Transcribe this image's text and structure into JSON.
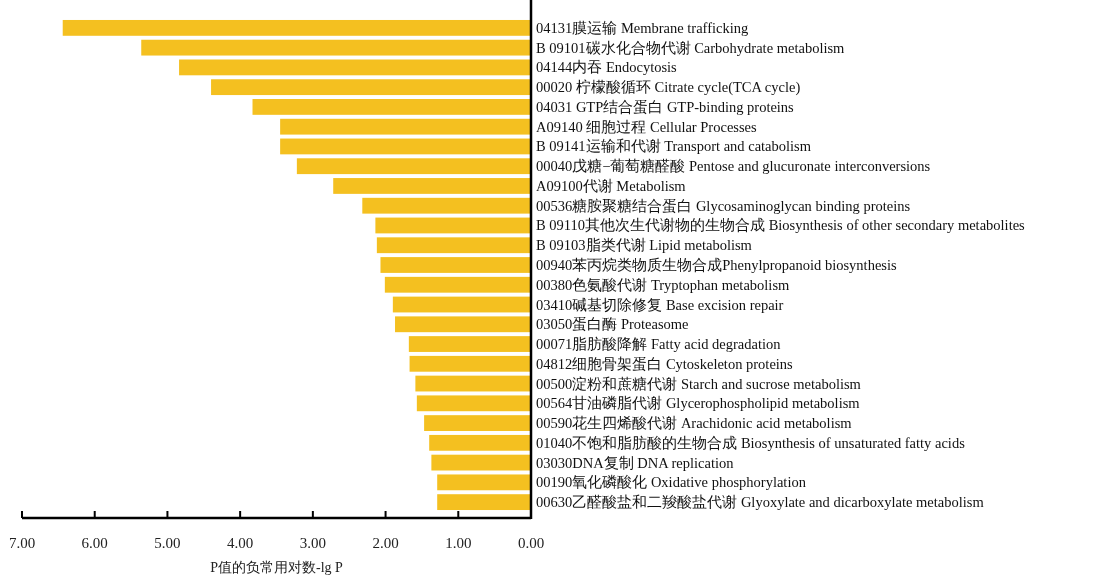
{
  "chart_data": {
    "type": "bar",
    "orientation": "horizontal",
    "xlabel": "P值的负常用对数-lg P",
    "categories": [
      "04131膜运输 Membrane trafficking",
      "B 09101碳水化合物代谢 Carbohydrate metabolism",
      "04144内吞 Endocytosis",
      "00020 柠檬酸循环 Citrate cycle(TCA cycle)",
      "04031 GTP结合蛋白 GTP-binding proteins",
      "A09140 细胞过程 Cellular Processes",
      "B 09141运输和代谢 Transport and catabolism",
      "00040戊糖−葡萄糖醛酸 Pentose and glucuronate interconversions",
      "A09100代谢 Metabolism",
      "00536糖胺聚糖结合蛋白 Glycosaminoglycan binding proteins",
      "B 09110其他次生代谢物的生物合成 Biosynthesis of other secondary metabolites",
      "B 09103脂类代谢 Lipid metabolism",
      "00940苯丙烷类物质生物合成Phenylpropanoid biosynthesis",
      "00380色氨酸代谢 Tryptophan metabolism",
      "03410碱基切除修复 Base excision repair",
      "03050蛋白酶 Proteasome",
      "00071脂肪酸降解 Fatty acid degradation",
      "04812细胞骨架蛋白 Cytoskeleton proteins",
      "00500淀粉和蔗糖代谢 Starch and sucrose metabolism",
      "00564甘油磷脂代谢 Glycerophospholipid metabolism",
      "00590花生四烯酸代谢 Arachidonic acid metabolism",
      "01040不饱和脂肪酸的生物合成 Biosynthesis of unsaturated fatty acids",
      "03030DNA复制 DNA replication",
      "00190氧化磷酸化 Oxidative phosphorylation",
      "00630乙醛酸盐和二羧酸盐代谢 Glyoxylate and dicarboxylate metabolism"
    ],
    "values": [
      6.44,
      5.36,
      4.84,
      4.4,
      3.83,
      3.45,
      3.45,
      3.22,
      2.72,
      2.32,
      2.14,
      2.12,
      2.07,
      2.01,
      1.9,
      1.87,
      1.68,
      1.67,
      1.59,
      1.57,
      1.47,
      1.4,
      1.37,
      1.29,
      1.29
    ],
    "color": "#f4c020",
    "xlim": [
      7,
      0
    ],
    "xticks": [
      {
        "value": 7,
        "label": "7.00"
      },
      {
        "value": 6,
        "label": "6.00"
      },
      {
        "value": 5,
        "label": "5.00"
      },
      {
        "value": 4,
        "label": "4.00"
      },
      {
        "value": 3,
        "label": "3.00"
      },
      {
        "value": 2,
        "label": "2.00"
      },
      {
        "value": 1,
        "label": "1.00"
      },
      {
        "value": 0,
        "label": "0.00"
      }
    ]
  }
}
